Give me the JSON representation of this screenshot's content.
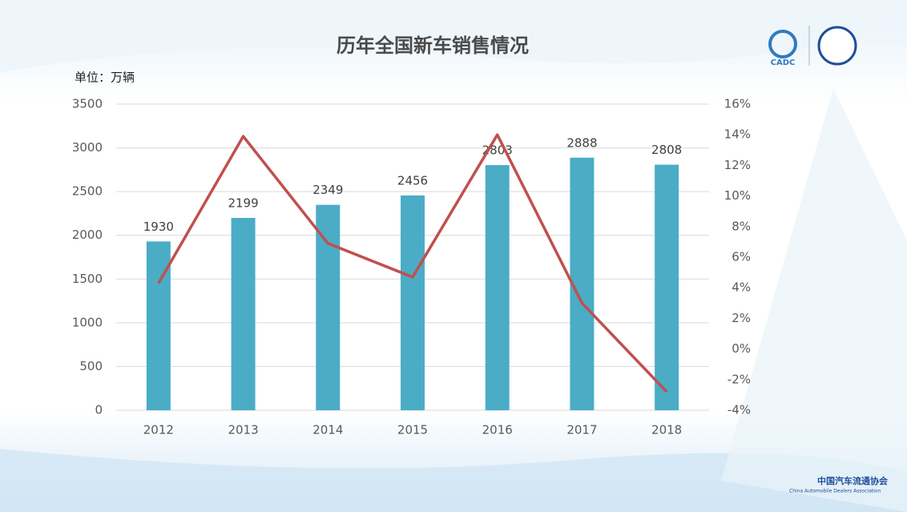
{
  "chart_data": {
    "type": "combo",
    "title": "历年全国新车销售情况",
    "unit_label": "单位：万辆",
    "categories": [
      "2012",
      "2013",
      "2014",
      "2015",
      "2016",
      "2017",
      "2018"
    ],
    "series": [
      {
        "type": "bar",
        "color": "#4bacc6",
        "values": [
          1930,
          2199,
          2349,
          2456,
          2803,
          2888,
          2808
        ],
        "show_value_labels": true
      },
      {
        "type": "line",
        "axis": "y2",
        "color": "#c0504d",
        "values": [
          4.3,
          13.9,
          6.9,
          4.7,
          14.0,
          3.0,
          -2.8
        ]
      }
    ],
    "ylim": [
      0,
      3500
    ],
    "yticks": [
      0,
      500,
      1000,
      1500,
      2000,
      2500,
      3000,
      3500
    ],
    "y2lim": [
      -4,
      16
    ],
    "y2ticks": [
      {
        "value": -4,
        "label": "-4%"
      },
      {
        "value": -2,
        "label": "-2%"
      },
      {
        "value": 0,
        "label": "0%"
      },
      {
        "value": 2,
        "label": "2%"
      },
      {
        "value": 4,
        "label": "4%"
      },
      {
        "value": 6,
        "label": "6%"
      },
      {
        "value": 8,
        "label": "8%"
      },
      {
        "value": 10,
        "label": "10%"
      },
      {
        "value": 12,
        "label": "12%"
      },
      {
        "value": 14,
        "label": "14%"
      },
      {
        "value": 16,
        "label": "16%"
      }
    ],
    "grid": true
  },
  "branding": {
    "logo": "CADC",
    "footer_cn": "中国汽车流通协会",
    "footer_en": "China Automobile Dealers Association"
  }
}
